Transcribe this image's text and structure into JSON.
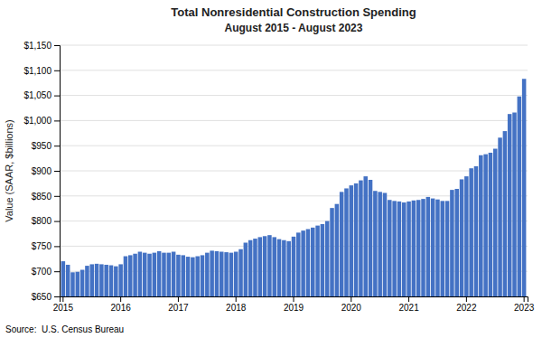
{
  "chart_data": {
    "type": "bar",
    "title": "Total Nonresidential Construction Spending",
    "subtitle": "August 2015 - August 2023",
    "ylabel": "Value (SAAR, $billions)",
    "annotations": [
      "Source:  U.S. Census Bureau"
    ],
    "color": "#4472C4",
    "grid": true,
    "ylim": [
      650,
      1150
    ],
    "yticks": [
      {
        "value": 650,
        "label": "$650"
      },
      {
        "value": 700,
        "label": "$700"
      },
      {
        "value": 750,
        "label": "$750"
      },
      {
        "value": 800,
        "label": "$800"
      },
      {
        "value": 850,
        "label": "$850"
      },
      {
        "value": 900,
        "label": "$900"
      },
      {
        "value": 950,
        "label": "$950"
      },
      {
        "value": 1000,
        "label": "$1,000"
      },
      {
        "value": 1050,
        "label": "$1,050"
      },
      {
        "value": 1100,
        "label": "$1,100"
      },
      {
        "value": 1150,
        "label": "$1,150"
      }
    ],
    "categories": [
      "2015",
      null,
      null,
      null,
      null,
      null,
      null,
      null,
      null,
      null,
      null,
      null,
      "2016",
      null,
      null,
      null,
      null,
      null,
      null,
      null,
      null,
      null,
      null,
      null,
      "2017",
      null,
      null,
      null,
      null,
      null,
      null,
      null,
      null,
      null,
      null,
      null,
      "2018",
      null,
      null,
      null,
      null,
      null,
      null,
      null,
      null,
      null,
      null,
      null,
      "2019",
      null,
      null,
      null,
      null,
      null,
      null,
      null,
      null,
      null,
      null,
      null,
      "2020",
      null,
      null,
      null,
      null,
      null,
      null,
      null,
      null,
      null,
      null,
      null,
      "2021",
      null,
      null,
      null,
      null,
      null,
      null,
      null,
      null,
      null,
      null,
      null,
      "2022",
      null,
      null,
      null,
      null,
      null,
      null,
      null,
      null,
      null,
      null,
      null,
      "2023"
    ],
    "values": [
      720,
      713,
      698,
      699,
      703,
      711,
      714,
      715,
      714,
      713,
      712,
      710,
      714,
      730,
      732,
      735,
      739,
      737,
      735,
      737,
      740,
      737,
      737,
      739,
      733,
      732,
      729,
      728,
      730,
      732,
      737,
      741,
      740,
      739,
      738,
      737,
      739,
      744,
      757,
      762,
      765,
      768,
      770,
      772,
      768,
      764,
      762,
      760,
      769,
      777,
      781,
      784,
      787,
      791,
      794,
      800,
      826,
      834,
      858,
      865,
      871,
      875,
      881,
      889,
      882,
      860,
      858,
      856,
      842,
      840,
      839,
      837,
      839,
      841,
      842,
      844,
      848,
      845,
      843,
      840,
      840,
      862,
      864,
      883,
      889,
      905,
      909,
      931,
      933,
      936,
      944,
      966,
      979,
      1013,
      1016,
      1048,
      1083
    ]
  }
}
